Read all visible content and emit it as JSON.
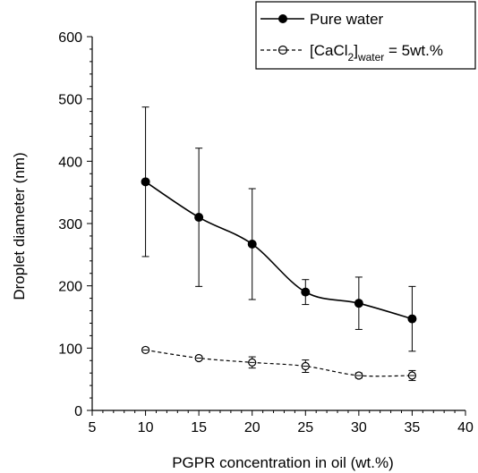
{
  "chart_data": {
    "type": "scatter",
    "xlabel": "PGPR concentration in oil  (wt.%)",
    "ylabel": "Droplet diameter  (nm)",
    "xlim": [
      5,
      40
    ],
    "ylim": [
      0,
      600
    ],
    "x_ticks": [
      5,
      10,
      15,
      20,
      25,
      30,
      35,
      40
    ],
    "y_ticks": [
      0,
      100,
      200,
      300,
      400,
      500,
      600
    ],
    "grid": false,
    "legend_position": "top-right",
    "series": [
      {
        "name": "Pure water",
        "marker": "filled-circle",
        "line": "solid",
        "x": [
          10,
          15,
          20,
          25,
          30,
          35
        ],
        "y": [
          367,
          310,
          267,
          190,
          172,
          147
        ],
        "error": [
          120,
          111,
          89,
          20,
          42,
          52
        ]
      },
      {
        "name": "[CaCl2]water = 5wt.%",
        "marker": "open-circle",
        "line": "dashed",
        "x": [
          10,
          15,
          20,
          25,
          30,
          35
        ],
        "y": [
          97,
          84,
          77,
          71,
          56,
          56
        ],
        "error": [
          3,
          3,
          9,
          10,
          4,
          8
        ]
      }
    ],
    "legend": {
      "entry1": "Pure water",
      "entry2_prefix": "[CaCl",
      "entry2_sub1": "2",
      "entry2_mid": "]",
      "entry2_sub2": "water",
      "entry2_suffix": " = 5wt.%"
    }
  }
}
